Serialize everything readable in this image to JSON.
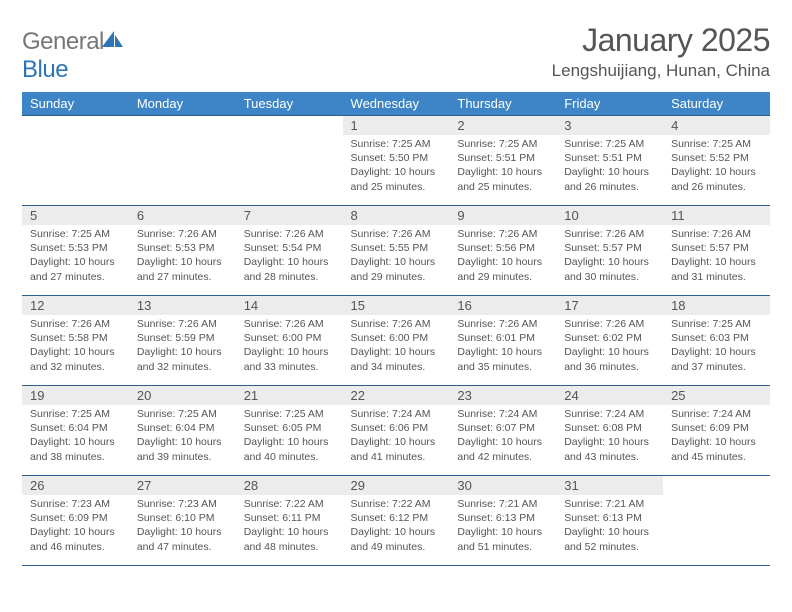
{
  "logo": {
    "word1": "General",
    "word2": "Blue"
  },
  "title": "January 2025",
  "location": "Lengshuijiang, Hunan, China",
  "colors": {
    "header_bg": "#3d85c6",
    "header_fg": "#ffffff",
    "row_border": "#2d5f8f",
    "daynum_bg": "#ececec",
    "text": "#555555",
    "logo_gray": "#777777",
    "logo_blue": "#2d75b5"
  },
  "day_headers": [
    "Sunday",
    "Monday",
    "Tuesday",
    "Wednesday",
    "Thursday",
    "Friday",
    "Saturday"
  ],
  "weeks": [
    [
      null,
      null,
      null,
      {
        "n": "1",
        "sr": "7:25 AM",
        "ss": "5:50 PM",
        "dl": "10 hours and 25 minutes."
      },
      {
        "n": "2",
        "sr": "7:25 AM",
        "ss": "5:51 PM",
        "dl": "10 hours and 25 minutes."
      },
      {
        "n": "3",
        "sr": "7:25 AM",
        "ss": "5:51 PM",
        "dl": "10 hours and 26 minutes."
      },
      {
        "n": "4",
        "sr": "7:25 AM",
        "ss": "5:52 PM",
        "dl": "10 hours and 26 minutes."
      }
    ],
    [
      {
        "n": "5",
        "sr": "7:25 AM",
        "ss": "5:53 PM",
        "dl": "10 hours and 27 minutes."
      },
      {
        "n": "6",
        "sr": "7:26 AM",
        "ss": "5:53 PM",
        "dl": "10 hours and 27 minutes."
      },
      {
        "n": "7",
        "sr": "7:26 AM",
        "ss": "5:54 PM",
        "dl": "10 hours and 28 minutes."
      },
      {
        "n": "8",
        "sr": "7:26 AM",
        "ss": "5:55 PM",
        "dl": "10 hours and 29 minutes."
      },
      {
        "n": "9",
        "sr": "7:26 AM",
        "ss": "5:56 PM",
        "dl": "10 hours and 29 minutes."
      },
      {
        "n": "10",
        "sr": "7:26 AM",
        "ss": "5:57 PM",
        "dl": "10 hours and 30 minutes."
      },
      {
        "n": "11",
        "sr": "7:26 AM",
        "ss": "5:57 PM",
        "dl": "10 hours and 31 minutes."
      }
    ],
    [
      {
        "n": "12",
        "sr": "7:26 AM",
        "ss": "5:58 PM",
        "dl": "10 hours and 32 minutes."
      },
      {
        "n": "13",
        "sr": "7:26 AM",
        "ss": "5:59 PM",
        "dl": "10 hours and 32 minutes."
      },
      {
        "n": "14",
        "sr": "7:26 AM",
        "ss": "6:00 PM",
        "dl": "10 hours and 33 minutes."
      },
      {
        "n": "15",
        "sr": "7:26 AM",
        "ss": "6:00 PM",
        "dl": "10 hours and 34 minutes."
      },
      {
        "n": "16",
        "sr": "7:26 AM",
        "ss": "6:01 PM",
        "dl": "10 hours and 35 minutes."
      },
      {
        "n": "17",
        "sr": "7:26 AM",
        "ss": "6:02 PM",
        "dl": "10 hours and 36 minutes."
      },
      {
        "n": "18",
        "sr": "7:25 AM",
        "ss": "6:03 PM",
        "dl": "10 hours and 37 minutes."
      }
    ],
    [
      {
        "n": "19",
        "sr": "7:25 AM",
        "ss": "6:04 PM",
        "dl": "10 hours and 38 minutes."
      },
      {
        "n": "20",
        "sr": "7:25 AM",
        "ss": "6:04 PM",
        "dl": "10 hours and 39 minutes."
      },
      {
        "n": "21",
        "sr": "7:25 AM",
        "ss": "6:05 PM",
        "dl": "10 hours and 40 minutes."
      },
      {
        "n": "22",
        "sr": "7:24 AM",
        "ss": "6:06 PM",
        "dl": "10 hours and 41 minutes."
      },
      {
        "n": "23",
        "sr": "7:24 AM",
        "ss": "6:07 PM",
        "dl": "10 hours and 42 minutes."
      },
      {
        "n": "24",
        "sr": "7:24 AM",
        "ss": "6:08 PM",
        "dl": "10 hours and 43 minutes."
      },
      {
        "n": "25",
        "sr": "7:24 AM",
        "ss": "6:09 PM",
        "dl": "10 hours and 45 minutes."
      }
    ],
    [
      {
        "n": "26",
        "sr": "7:23 AM",
        "ss": "6:09 PM",
        "dl": "10 hours and 46 minutes."
      },
      {
        "n": "27",
        "sr": "7:23 AM",
        "ss": "6:10 PM",
        "dl": "10 hours and 47 minutes."
      },
      {
        "n": "28",
        "sr": "7:22 AM",
        "ss": "6:11 PM",
        "dl": "10 hours and 48 minutes."
      },
      {
        "n": "29",
        "sr": "7:22 AM",
        "ss": "6:12 PM",
        "dl": "10 hours and 49 minutes."
      },
      {
        "n": "30",
        "sr": "7:21 AM",
        "ss": "6:13 PM",
        "dl": "10 hours and 51 minutes."
      },
      {
        "n": "31",
        "sr": "7:21 AM",
        "ss": "6:13 PM",
        "dl": "10 hours and 52 minutes."
      },
      null
    ]
  ],
  "labels": {
    "sunrise": "Sunrise:",
    "sunset": "Sunset:",
    "daylight": "Daylight:"
  }
}
